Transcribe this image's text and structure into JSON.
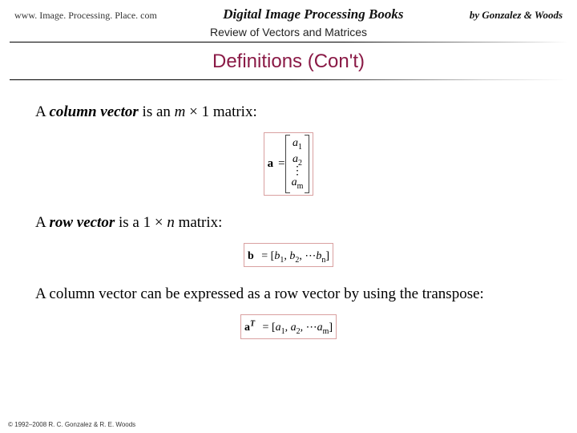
{
  "header": {
    "site_url": "www. Image. Processing. Place. com",
    "book_title": "Digital Image Processing Books",
    "authors": "by Gonzalez & Woods",
    "subtitle": "Review of Vectors and Matrices"
  },
  "section_heading": "Definitions (Con't)",
  "body": {
    "p1_a": "A ",
    "p1_b": "column vector",
    "p1_c": " is an ",
    "p1_d": "m",
    "p1_e": " × 1 matrix:",
    "col_vec": {
      "lhs": "a",
      "eq": " = ",
      "e1": "a",
      "s1": "1",
      "e2": "a",
      "s2": "2",
      "dots": "⋮",
      "em": "a",
      "sm": "m"
    },
    "p2_a": "A ",
    "p2_b": "row vector",
    "p2_c": " is a 1 × ",
    "p2_d": "n",
    "p2_e": " matrix:",
    "row_vec": {
      "lhs": "b",
      "eq": " = [",
      "b1v": "b",
      "b1s": "1",
      "c1": ", ",
      "b2v": "b",
      "b2s": "2",
      "c2": ", ⋯",
      "bnv": "b",
      "bns": "n",
      "close": "]"
    },
    "p3": "A column vector can be expressed as a row vector by using the transpose:",
    "transpose": {
      "lhs": "a",
      "sup": "T",
      "eq": " = [",
      "a1v": "a",
      "a1s": "1",
      "c1": ", ",
      "a2v": "a",
      "a2s": "2",
      "c2": ", ⋯",
      "amv": "a",
      "ams": "m",
      "close": "]"
    }
  },
  "footer": "© 1992–2008  R. C. Gonzalez & R. E. Woods",
  "colors": {
    "heading": "#8a1a46",
    "box_border": "#d9a0a0",
    "text": "#000000",
    "bg": "#ffffff"
  }
}
